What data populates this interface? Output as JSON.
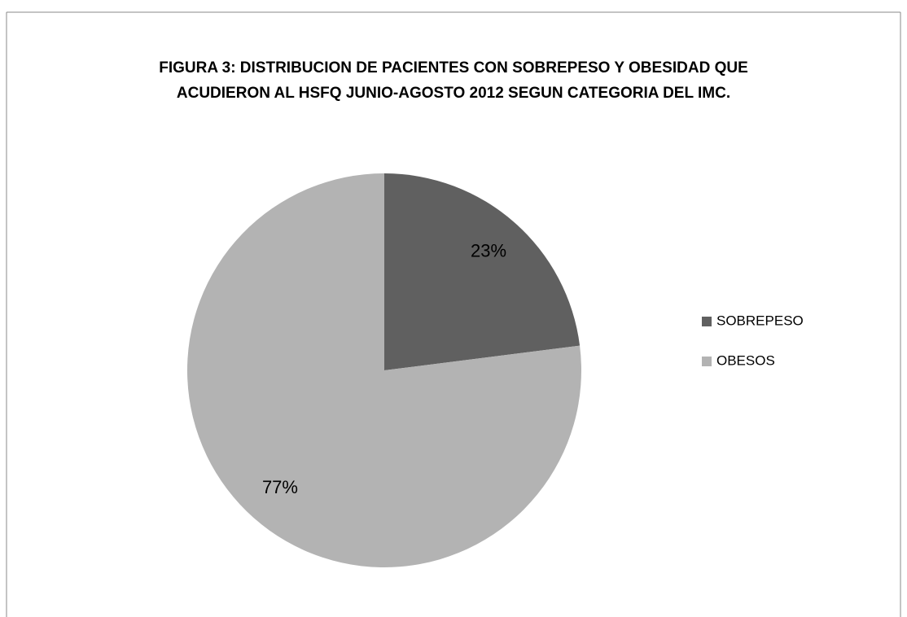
{
  "chart_data": {
    "type": "pie",
    "title": "FIGURA 3: DISTRIBUCION DE PACIENTES CON SOBREPESO Y OBESIDAD QUE ACUDIERON AL HSFQ JUNIO-AGOSTO 2012 SEGUN CATEGORIA DEL IMC.",
    "categories": [
      "SOBREPESO",
      "OBESOS"
    ],
    "values": [
      23,
      77
    ],
    "value_labels": [
      "23%",
      "77%"
    ],
    "colors": [
      "#606060",
      "#b3b3b3"
    ],
    "legend": "right"
  }
}
